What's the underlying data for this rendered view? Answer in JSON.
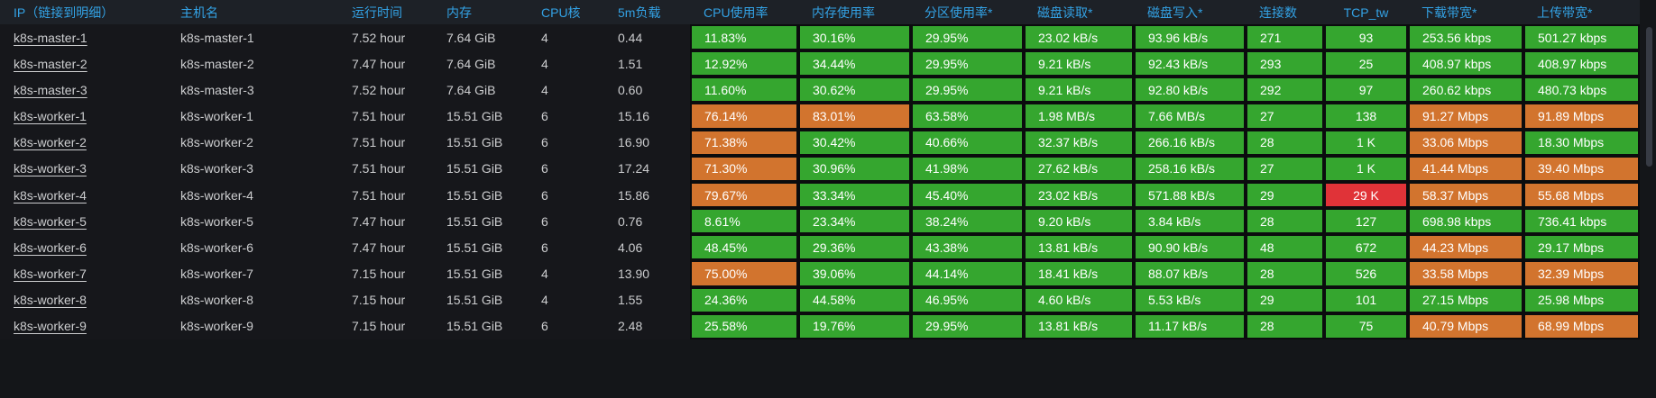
{
  "colors": {
    "green": "#35a62f",
    "orange": "#d2742e",
    "red": "#e03338",
    "header_blue": "#33a2e5"
  },
  "table": {
    "columns": [
      {
        "key": "ip",
        "label": "IP（链接到明细）",
        "type": "link"
      },
      {
        "key": "hostname",
        "label": "主机名",
        "type": "text"
      },
      {
        "key": "uptime",
        "label": "运行时间",
        "type": "text"
      },
      {
        "key": "memory",
        "label": "内存",
        "type": "text"
      },
      {
        "key": "cores",
        "label": "CPU核",
        "type": "text"
      },
      {
        "key": "load5m",
        "label": "5m负载",
        "type": "text"
      },
      {
        "key": "cpu",
        "label": "CPU使用率",
        "type": "metric"
      },
      {
        "key": "mem",
        "label": "内存使用率",
        "type": "metric"
      },
      {
        "key": "partition",
        "label": "分区使用率*",
        "type": "metric"
      },
      {
        "key": "disk_read",
        "label": "磁盘读取*",
        "type": "metric"
      },
      {
        "key": "disk_write",
        "label": "磁盘写入*",
        "type": "metric"
      },
      {
        "key": "connections",
        "label": "连接数",
        "type": "metric"
      },
      {
        "key": "tcp_tw",
        "label": "TCP_tw",
        "type": "metric",
        "align": "center"
      },
      {
        "key": "download",
        "label": "下载带宽*",
        "type": "metric"
      },
      {
        "key": "upload",
        "label": "上传带宽*",
        "type": "metric"
      }
    ],
    "rows": [
      {
        "ip": "k8s-master-1",
        "hostname": "k8s-master-1",
        "uptime": "7.52 hour",
        "memory": "7.64 GiB",
        "cores": "4",
        "load5m": "0.44",
        "cpu": {
          "value": "11.83%",
          "state": "green"
        },
        "mem": {
          "value": "30.16%",
          "state": "green"
        },
        "partition": {
          "value": "29.95%",
          "state": "green"
        },
        "disk_read": {
          "value": "23.02 kB/s",
          "state": "green"
        },
        "disk_write": {
          "value": "93.96 kB/s",
          "state": "green"
        },
        "connections": {
          "value": "271",
          "state": "green"
        },
        "tcp_tw": {
          "value": "93",
          "state": "green"
        },
        "download": {
          "value": "253.56 kbps",
          "state": "green"
        },
        "upload": {
          "value": "501.27 kbps",
          "state": "green"
        }
      },
      {
        "ip": "k8s-master-2",
        "hostname": "k8s-master-2",
        "uptime": "7.47 hour",
        "memory": "7.64 GiB",
        "cores": "4",
        "load5m": "1.51",
        "cpu": {
          "value": "12.92%",
          "state": "green"
        },
        "mem": {
          "value": "34.44%",
          "state": "green"
        },
        "partition": {
          "value": "29.95%",
          "state": "green"
        },
        "disk_read": {
          "value": "9.21 kB/s",
          "state": "green"
        },
        "disk_write": {
          "value": "92.43 kB/s",
          "state": "green"
        },
        "connections": {
          "value": "293",
          "state": "green"
        },
        "tcp_tw": {
          "value": "25",
          "state": "green"
        },
        "download": {
          "value": "408.97 kbps",
          "state": "green"
        },
        "upload": {
          "value": "408.97 kbps",
          "state": "green"
        }
      },
      {
        "ip": "k8s-master-3",
        "hostname": "k8s-master-3",
        "uptime": "7.52 hour",
        "memory": "7.64 GiB",
        "cores": "4",
        "load5m": "0.60",
        "cpu": {
          "value": "11.60%",
          "state": "green"
        },
        "mem": {
          "value": "30.62%",
          "state": "green"
        },
        "partition": {
          "value": "29.95%",
          "state": "green"
        },
        "disk_read": {
          "value": "9.21 kB/s",
          "state": "green"
        },
        "disk_write": {
          "value": "92.80 kB/s",
          "state": "green"
        },
        "connections": {
          "value": "292",
          "state": "green"
        },
        "tcp_tw": {
          "value": "97",
          "state": "green"
        },
        "download": {
          "value": "260.62 kbps",
          "state": "green"
        },
        "upload": {
          "value": "480.73 kbps",
          "state": "green"
        }
      },
      {
        "ip": "k8s-worker-1",
        "hostname": "k8s-worker-1",
        "uptime": "7.51 hour",
        "memory": "15.51 GiB",
        "cores": "6",
        "load5m": "15.16",
        "cpu": {
          "value": "76.14%",
          "state": "orange"
        },
        "mem": {
          "value": "83.01%",
          "state": "orange"
        },
        "partition": {
          "value": "63.58%",
          "state": "green"
        },
        "disk_read": {
          "value": "1.98 MB/s",
          "state": "green"
        },
        "disk_write": {
          "value": "7.66 MB/s",
          "state": "green"
        },
        "connections": {
          "value": "27",
          "state": "green"
        },
        "tcp_tw": {
          "value": "138",
          "state": "green"
        },
        "download": {
          "value": "91.27 Mbps",
          "state": "orange"
        },
        "upload": {
          "value": "91.89 Mbps",
          "state": "orange"
        }
      },
      {
        "ip": "k8s-worker-2",
        "hostname": "k8s-worker-2",
        "uptime": "7.51 hour",
        "memory": "15.51 GiB",
        "cores": "6",
        "load5m": "16.90",
        "cpu": {
          "value": "71.38%",
          "state": "orange"
        },
        "mem": {
          "value": "30.42%",
          "state": "green"
        },
        "partition": {
          "value": "40.66%",
          "state": "green"
        },
        "disk_read": {
          "value": "32.37 kB/s",
          "state": "green"
        },
        "disk_write": {
          "value": "266.16 kB/s",
          "state": "green"
        },
        "connections": {
          "value": "28",
          "state": "green"
        },
        "tcp_tw": {
          "value": "1 K",
          "state": "green"
        },
        "download": {
          "value": "33.06 Mbps",
          "state": "orange"
        },
        "upload": {
          "value": "18.30 Mbps",
          "state": "green"
        }
      },
      {
        "ip": "k8s-worker-3",
        "hostname": "k8s-worker-3",
        "uptime": "7.51 hour",
        "memory": "15.51 GiB",
        "cores": "6",
        "load5m": "17.24",
        "cpu": {
          "value": "71.30%",
          "state": "orange"
        },
        "mem": {
          "value": "30.96%",
          "state": "green"
        },
        "partition": {
          "value": "41.98%",
          "state": "green"
        },
        "disk_read": {
          "value": "27.62 kB/s",
          "state": "green"
        },
        "disk_write": {
          "value": "258.16 kB/s",
          "state": "green"
        },
        "connections": {
          "value": "27",
          "state": "green"
        },
        "tcp_tw": {
          "value": "1 K",
          "state": "green"
        },
        "download": {
          "value": "41.44 Mbps",
          "state": "orange"
        },
        "upload": {
          "value": "39.40 Mbps",
          "state": "orange"
        }
      },
      {
        "ip": "k8s-worker-4",
        "hostname": "k8s-worker-4",
        "uptime": "7.51 hour",
        "memory": "15.51 GiB",
        "cores": "6",
        "load5m": "15.86",
        "cpu": {
          "value": "79.67%",
          "state": "orange"
        },
        "mem": {
          "value": "33.34%",
          "state": "green"
        },
        "partition": {
          "value": "45.40%",
          "state": "green"
        },
        "disk_read": {
          "value": "23.02 kB/s",
          "state": "green"
        },
        "disk_write": {
          "value": "571.88 kB/s",
          "state": "green"
        },
        "connections": {
          "value": "29",
          "state": "green"
        },
        "tcp_tw": {
          "value": "29 K",
          "state": "red"
        },
        "download": {
          "value": "58.37 Mbps",
          "state": "orange"
        },
        "upload": {
          "value": "55.68 Mbps",
          "state": "orange"
        }
      },
      {
        "ip": "k8s-worker-5",
        "hostname": "k8s-worker-5",
        "uptime": "7.47 hour",
        "memory": "15.51 GiB",
        "cores": "6",
        "load5m": "0.76",
        "cpu": {
          "value": "8.61%",
          "state": "green"
        },
        "mem": {
          "value": "23.34%",
          "state": "green"
        },
        "partition": {
          "value": "38.24%",
          "state": "green"
        },
        "disk_read": {
          "value": "9.20 kB/s",
          "state": "green"
        },
        "disk_write": {
          "value": "3.84 kB/s",
          "state": "green"
        },
        "connections": {
          "value": "28",
          "state": "green"
        },
        "tcp_tw": {
          "value": "127",
          "state": "green"
        },
        "download": {
          "value": "698.98 kbps",
          "state": "green"
        },
        "upload": {
          "value": "736.41 kbps",
          "state": "green"
        }
      },
      {
        "ip": "k8s-worker-6",
        "hostname": "k8s-worker-6",
        "uptime": "7.47 hour",
        "memory": "15.51 GiB",
        "cores": "6",
        "load5m": "4.06",
        "cpu": {
          "value": "48.45%",
          "state": "green"
        },
        "mem": {
          "value": "29.36%",
          "state": "green"
        },
        "partition": {
          "value": "43.38%",
          "state": "green"
        },
        "disk_read": {
          "value": "13.81 kB/s",
          "state": "green"
        },
        "disk_write": {
          "value": "90.90 kB/s",
          "state": "green"
        },
        "connections": {
          "value": "48",
          "state": "green"
        },
        "tcp_tw": {
          "value": "672",
          "state": "green"
        },
        "download": {
          "value": "44.23 Mbps",
          "state": "orange"
        },
        "upload": {
          "value": "29.17 Mbps",
          "state": "green"
        }
      },
      {
        "ip": "k8s-worker-7",
        "hostname": "k8s-worker-7",
        "uptime": "7.15 hour",
        "memory": "15.51 GiB",
        "cores": "4",
        "load5m": "13.90",
        "cpu": {
          "value": "75.00%",
          "state": "orange"
        },
        "mem": {
          "value": "39.06%",
          "state": "green"
        },
        "partition": {
          "value": "44.14%",
          "state": "green"
        },
        "disk_read": {
          "value": "18.41 kB/s",
          "state": "green"
        },
        "disk_write": {
          "value": "88.07 kB/s",
          "state": "green"
        },
        "connections": {
          "value": "28",
          "state": "green"
        },
        "tcp_tw": {
          "value": "526",
          "state": "green"
        },
        "download": {
          "value": "33.58 Mbps",
          "state": "orange"
        },
        "upload": {
          "value": "32.39 Mbps",
          "state": "orange"
        }
      },
      {
        "ip": "k8s-worker-8",
        "hostname": "k8s-worker-8",
        "uptime": "7.15 hour",
        "memory": "15.51 GiB",
        "cores": "4",
        "load5m": "1.55",
        "cpu": {
          "value": "24.36%",
          "state": "green"
        },
        "mem": {
          "value": "44.58%",
          "state": "green"
        },
        "partition": {
          "value": "46.95%",
          "state": "green"
        },
        "disk_read": {
          "value": "4.60 kB/s",
          "state": "green"
        },
        "disk_write": {
          "value": "5.53 kB/s",
          "state": "green"
        },
        "connections": {
          "value": "29",
          "state": "green"
        },
        "tcp_tw": {
          "value": "101",
          "state": "green"
        },
        "download": {
          "value": "27.15 Mbps",
          "state": "green"
        },
        "upload": {
          "value": "25.98 Mbps",
          "state": "green"
        }
      },
      {
        "ip": "k8s-worker-9",
        "hostname": "k8s-worker-9",
        "uptime": "7.15 hour",
        "memory": "15.51 GiB",
        "cores": "6",
        "load5m": "2.48",
        "cpu": {
          "value": "25.58%",
          "state": "green"
        },
        "mem": {
          "value": "19.76%",
          "state": "green"
        },
        "partition": {
          "value": "29.95%",
          "state": "green"
        },
        "disk_read": {
          "value": "13.81 kB/s",
          "state": "green"
        },
        "disk_write": {
          "value": "11.17 kB/s",
          "state": "green"
        },
        "connections": {
          "value": "28",
          "state": "green"
        },
        "tcp_tw": {
          "value": "75",
          "state": "green"
        },
        "download": {
          "value": "40.79 Mbps",
          "state": "orange"
        },
        "upload": {
          "value": "68.99 Mbps",
          "state": "orange"
        }
      }
    ]
  }
}
